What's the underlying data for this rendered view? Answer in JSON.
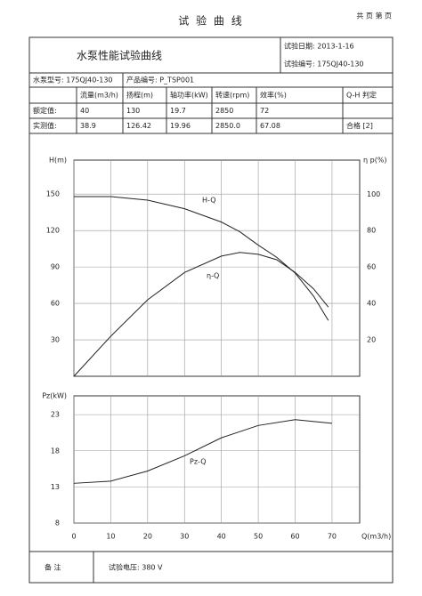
{
  "header": {
    "title": "试 验 曲 线",
    "pages": "共 页 第 页"
  },
  "form": {
    "title": "水泵性能试验曲线",
    "date": "试验日期: 2013-1-16",
    "test_no": "试验编号: 175QJ40-130",
    "model": "水泵型号: 175QJ40-130",
    "product_no": "产品编号: P_TSP001"
  },
  "table": {
    "columns": [
      "流量(m3/h)",
      "扬程(m)",
      "轴功率(kW)",
      "转速(rpm)",
      "效率(%)",
      "Q-H 判定"
    ],
    "rows": [
      [
        "额定值:",
        "40",
        "130",
        "19.7",
        "2850",
        "72",
        ""
      ],
      [
        "实测值:",
        "38.9",
        "126.42",
        "19.96",
        "2850.0",
        "67.08",
        "合格 [2]"
      ]
    ]
  },
  "chart_data": [
    {
      "type": "line",
      "ylabel": "H(m)",
      "y2label": "η p(%)",
      "x": [
        0,
        10,
        20,
        30,
        40,
        45,
        50,
        55,
        60,
        65,
        69
      ],
      "xlim": [
        0,
        77.5
      ],
      "xticks": [
        0,
        10,
        20,
        30,
        40,
        50,
        60,
        70
      ],
      "xtick_labels": false,
      "ylim": [
        0,
        178
      ],
      "yticks": [
        30,
        60,
        90,
        120,
        150
      ],
      "y2lim": [
        0,
        118.7
      ],
      "y2ticks": [
        20,
        40,
        60,
        80,
        100
      ],
      "grid": true,
      "series": [
        {
          "name": "H-Q",
          "color": "#222222",
          "values": [
            148,
            148,
            145,
            138,
            127,
            119,
            108,
            98,
            85,
            66,
            46
          ]
        },
        {
          "name": "η-Q",
          "color": "#222222",
          "axis": "y2",
          "values": [
            0,
            22,
            42,
            57,
            66,
            68,
            67,
            64,
            57,
            48,
            38
          ]
        }
      ]
    },
    {
      "type": "line",
      "ylabel": "Pz(kW)",
      "xlabel": "Q(m3/h)",
      "x": [
        0,
        10,
        20,
        30,
        40,
        50,
        60,
        70
      ],
      "xlim": [
        0,
        77.5
      ],
      "xticks": [
        0,
        10,
        20,
        30,
        40,
        50,
        60,
        70
      ],
      "xtick_labels": true,
      "ylim": [
        8,
        25.6
      ],
      "yticks": [
        8,
        13,
        18,
        23
      ],
      "grid": true,
      "series": [
        {
          "name": "Pz-Q",
          "color": "#222222",
          "values": [
            13.5,
            13.8,
            15.2,
            17.3,
            19.8,
            21.5,
            22.3,
            21.8
          ]
        }
      ]
    }
  ],
  "footer": {
    "label": "备  注",
    "note": "试验电压: 380 V"
  }
}
